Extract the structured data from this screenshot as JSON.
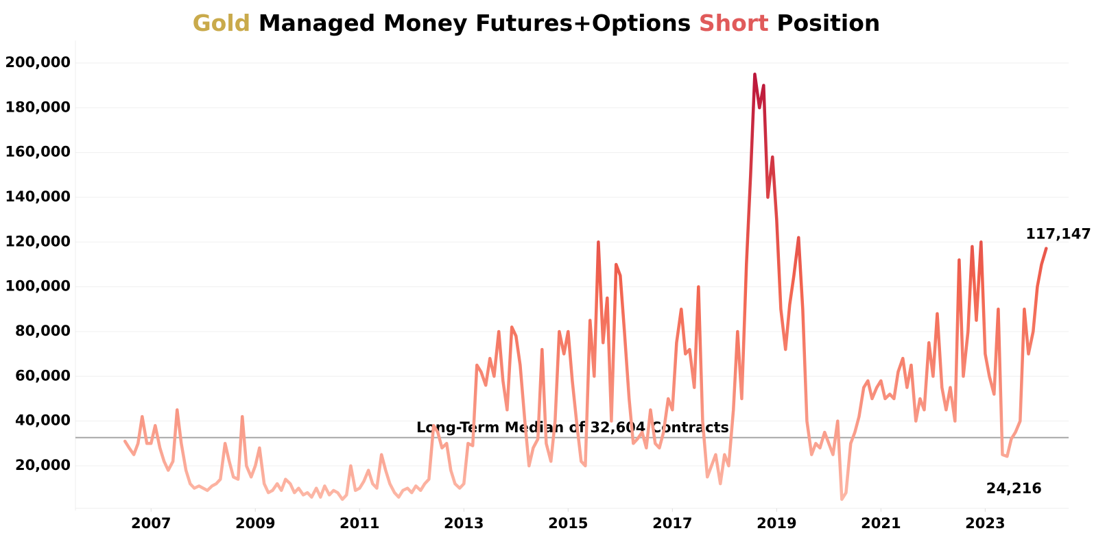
{
  "chart_data": {
    "type": "line",
    "title_parts": [
      {
        "text": "Gold",
        "color": "#c9aa4b"
      },
      {
        "text": "Managed Money Futures+Options",
        "color": "#000000"
      },
      {
        "text": "Short",
        "color": "#e05a5a"
      },
      {
        "text": "Position",
        "color": "#000000"
      }
    ],
    "x": [
      2006.5,
      2006.58,
      2006.67,
      2006.75,
      2006.83,
      2006.92,
      2007,
      2007.08,
      2007.17,
      2007.25,
      2007.33,
      2007.42,
      2007.5,
      2007.58,
      2007.67,
      2007.75,
      2007.83,
      2007.92,
      2008,
      2008.08,
      2008.17,
      2008.25,
      2008.33,
      2008.42,
      2008.5,
      2008.58,
      2008.67,
      2008.75,
      2008.83,
      2008.92,
      2009,
      2009.08,
      2009.17,
      2009.25,
      2009.33,
      2009.42,
      2009.5,
      2009.58,
      2009.67,
      2009.75,
      2009.83,
      2009.92,
      2010,
      2010.08,
      2010.17,
      2010.25,
      2010.33,
      2010.42,
      2010.5,
      2010.58,
      2010.67,
      2010.75,
      2010.83,
      2010.92,
      2011,
      2011.08,
      2011.17,
      2011.25,
      2011.33,
      2011.42,
      2011.5,
      2011.58,
      2011.67,
      2011.75,
      2011.83,
      2011.92,
      2012,
      2012.08,
      2012.17,
      2012.25,
      2012.33,
      2012.42,
      2012.5,
      2012.58,
      2012.67,
      2012.75,
      2012.83,
      2012.92,
      2013,
      2013.08,
      2013.17,
      2013.25,
      2013.33,
      2013.42,
      2013.5,
      2013.58,
      2013.67,
      2013.75,
      2013.83,
      2013.92,
      2014,
      2014.08,
      2014.17,
      2014.25,
      2014.33,
      2014.42,
      2014.5,
      2014.58,
      2014.67,
      2014.75,
      2014.83,
      2014.92,
      2015,
      2015.08,
      2015.17,
      2015.25,
      2015.33,
      2015.42,
      2015.5,
      2015.58,
      2015.67,
      2015.75,
      2015.83,
      2015.92,
      2016,
      2016.08,
      2016.17,
      2016.25,
      2016.33,
      2016.42,
      2016.5,
      2016.58,
      2016.67,
      2016.75,
      2016.83,
      2016.92,
      2017,
      2017.08,
      2017.17,
      2017.25,
      2017.33,
      2017.42,
      2017.5,
      2017.58,
      2017.67,
      2017.75,
      2017.83,
      2017.92,
      2018,
      2018.08,
      2018.17,
      2018.25,
      2018.33,
      2018.42,
      2018.5,
      2018.58,
      2018.67,
      2018.75,
      2018.83,
      2018.92,
      2019,
      2019.08,
      2019.17,
      2019.25,
      2019.33,
      2019.42,
      2019.5,
      2019.58,
      2019.67,
      2019.75,
      2019.83,
      2019.92,
      2020,
      2020.08,
      2020.17,
      2020.25,
      2020.33,
      2020.42,
      2020.5,
      2020.58,
      2020.67,
      2020.75,
      2020.83,
      2020.92,
      2021,
      2021.08,
      2021.17,
      2021.25,
      2021.33,
      2021.42,
      2021.5,
      2021.58,
      2021.67,
      2021.75,
      2021.83,
      2021.92,
      2022,
      2022.08,
      2022.17,
      2022.25,
      2022.33,
      2022.42,
      2022.5,
      2022.58,
      2022.67,
      2022.75,
      2022.83,
      2022.92,
      2023,
      2023.08,
      2023.17,
      2023.25,
      2023.33,
      2023.42,
      2023.5,
      2023.58,
      2023.67,
      2023.75,
      2023.83,
      2023.92,
      2024,
      2024.08,
      2024.17
    ],
    "values": [
      31000,
      28000,
      25000,
      30000,
      42000,
      30000,
      30000,
      38000,
      28000,
      22000,
      18000,
      22000,
      45000,
      30000,
      18000,
      12000,
      10000,
      11000,
      10000,
      9000,
      11000,
      12000,
      14000,
      30000,
      22000,
      15000,
      14000,
      42000,
      20000,
      15000,
      20000,
      28000,
      12000,
      8000,
      9000,
      12000,
      9000,
      14000,
      12000,
      8000,
      10000,
      7000,
      8000,
      6000,
      10000,
      6000,
      11000,
      7000,
      9000,
      8000,
      5000,
      7000,
      20000,
      9000,
      10000,
      13000,
      18000,
      12000,
      10000,
      25000,
      18000,
      12000,
      8000,
      6000,
      9000,
      10000,
      8000,
      11000,
      9000,
      12000,
      14000,
      38000,
      35000,
      28000,
      30000,
      18000,
      12000,
      10000,
      12000,
      30000,
      29000,
      65000,
      62000,
      56000,
      68000,
      60000,
      80000,
      58000,
      45000,
      82000,
      78000,
      65000,
      40000,
      20000,
      28000,
      32000,
      72000,
      30000,
      22000,
      40000,
      80000,
      70000,
      80000,
      58000,
      38000,
      22000,
      20000,
      85000,
      60000,
      120000,
      75000,
      95000,
      40000,
      110000,
      105000,
      80000,
      50000,
      30000,
      32000,
      35000,
      28000,
      45000,
      30000,
      28000,
      35000,
      50000,
      45000,
      75000,
      90000,
      70000,
      72000,
      55000,
      100000,
      40000,
      15000,
      20000,
      25000,
      12000,
      25000,
      20000,
      45000,
      80000,
      50000,
      110000,
      150000,
      195000,
      180000,
      190000,
      140000,
      158000,
      130000,
      90000,
      72000,
      92000,
      105000,
      122000,
      90000,
      40000,
      25000,
      30000,
      28000,
      35000,
      30000,
      25000,
      40000,
      5000,
      8000,
      30000,
      35000,
      42000,
      55000,
      58000,
      50000,
      55000,
      58000,
      50000,
      52000,
      50000,
      62000,
      68000,
      55000,
      65000,
      40000,
      50000,
      45000,
      75000,
      60000,
      88000,
      55000,
      45000,
      55000,
      40000,
      112000,
      60000,
      80000,
      118000,
      85000,
      120000,
      70000,
      60000,
      52000,
      90000,
      25000,
      24216,
      32000,
      35000,
      40000,
      90000,
      70000,
      80000,
      100000,
      110000,
      117147
    ],
    "color_stops": [
      {
        "value": 0,
        "color": "#fdbcab"
      },
      {
        "value": 100000,
        "color": "#f2644f"
      },
      {
        "value": 200000,
        "color": "#b8123a"
      }
    ],
    "xlim": [
      2005.55,
      2024.6
    ],
    "xticks": [
      2007,
      2009,
      2011,
      2013,
      2015,
      2017,
      2019,
      2021,
      2023
    ],
    "ylim": [
      0,
      210000
    ],
    "yticks": [
      {
        "value": 20000,
        "label": "20,000"
      },
      {
        "value": 40000,
        "label": "40,000"
      },
      {
        "value": 60000,
        "label": "60,000"
      },
      {
        "value": 80000,
        "label": "80,000"
      },
      {
        "value": 100000,
        "label": "100,000"
      },
      {
        "value": 120000,
        "label": "120,000"
      },
      {
        "value": 140000,
        "label": "140,000"
      },
      {
        "value": 160000,
        "label": "160,000"
      },
      {
        "value": 180000,
        "label": "180,000"
      },
      {
        "value": 200000,
        "label": "200,000"
      }
    ],
    "grid": true,
    "median": {
      "value": 32604,
      "label": "Long-Term Median of 32,604 Contracts",
      "color": "#a6a6a6"
    },
    "annotations": [
      {
        "x": 2024.17,
        "y": 117147,
        "label": "117,147"
      },
      {
        "x": 2023.42,
        "y": 24216,
        "label": "24,216"
      }
    ]
  }
}
